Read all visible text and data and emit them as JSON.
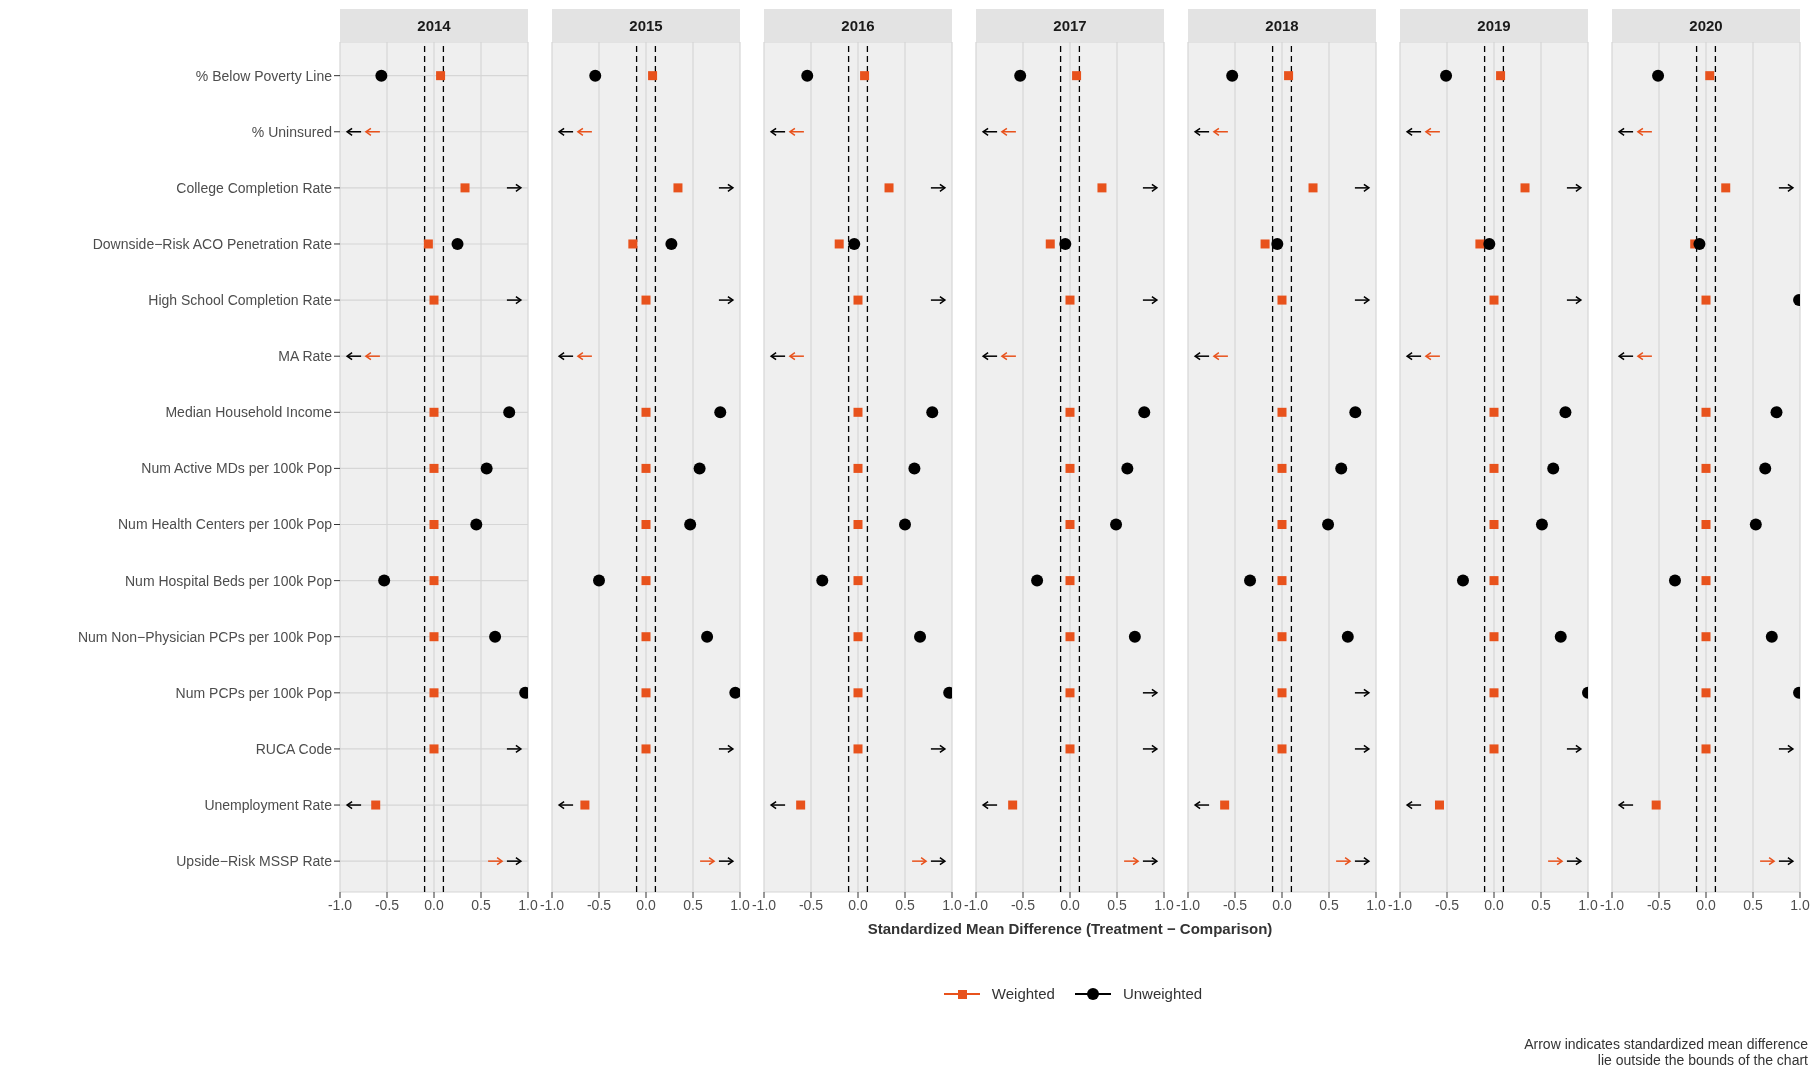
{
  "chart_data": [
    {
      "type": "scatter",
      "orientation": "horizontal",
      "title": "2014",
      "legend": "bottom",
      "grid": true,
      "categories": [
        "% Below Poverty Line",
        "% Uninsured",
        "College Completion Rate",
        "Downside−Risk ACO Penetration Rate",
        "High School Completion Rate",
        "MA Rate",
        "Median Household Income",
        "Num Active MDs per 100k Pop",
        "Num Health Centers per 100k Pop",
        "Num Hospital Beds per 100k Pop",
        "Num Non−Physician PCPs per 100k Pop",
        "Num PCPs per 100k Pop",
        "RUCA Code",
        "Unemployment Rate",
        "Upside−Risk MSSP Rate"
      ],
      "series": [
        {
          "name": "Weighted",
          "color": "#e8521c",
          "marker": "square",
          "values": [
            0.07,
            null,
            0.33,
            -0.06,
            0,
            null,
            0,
            0,
            0,
            0,
            0,
            0,
            0,
            -0.62,
            null
          ]
        },
        {
          "name": "Unweighted",
          "color": "#000000",
          "marker": "circle",
          "values": [
            -0.56,
            null,
            null,
            0.25,
            null,
            null,
            0.8,
            0.56,
            0.45,
            -0.53,
            0.65,
            0.97,
            null,
            null,
            null
          ]
        }
      ],
      "xlim": [
        -1,
        1
      ],
      "xticks": [
        {
          "value": -1,
          "label": "-1.0"
        },
        {
          "value": -0.5,
          "label": "-0.5"
        },
        {
          "value": 0,
          "label": "0.0"
        },
        {
          "value": 0.5,
          "label": "0.5"
        },
        {
          "value": 1,
          "label": "1.0"
        }
      ],
      "ref_lines": [
        {
          "axis": "x",
          "value": -0.1,
          "line_style": "dashed",
          "color": "#000000"
        },
        {
          "axis": "x",
          "value": 0.1,
          "line_style": "dashed",
          "color": "#000000"
        }
      ],
      "annotations": [
        "Arrow indicates standardized mean difference\nlie outside the bounds of the chart"
      ]
    },
    {
      "type": "scatter",
      "orientation": "horizontal",
      "title": "2015",
      "grid": true,
      "tick_labels": "x",
      "series": [
        {
          "color": "#e8521c",
          "marker": "square",
          "values": [
            0.07,
            null,
            0.34,
            -0.14,
            0,
            null,
            0,
            0,
            0,
            0,
            0,
            0,
            0,
            -0.65,
            null
          ]
        },
        {
          "color": "#000000",
          "marker": "circle",
          "values": [
            -0.54,
            null,
            null,
            0.27,
            null,
            null,
            0.79,
            0.57,
            0.47,
            -0.5,
            0.65,
            0.95,
            null,
            null,
            null
          ]
        }
      ],
      "xlim": [
        -1,
        1
      ],
      "xticks": [
        {
          "value": -1,
          "label": "-1.0"
        },
        {
          "value": -0.5,
          "label": "-0.5"
        },
        {
          "value": 0,
          "label": "0.0"
        },
        {
          "value": 0.5,
          "label": "0.5"
        },
        {
          "value": 1,
          "label": "1.0"
        }
      ],
      "ref_lines": [
        {
          "axis": "x",
          "value": -0.1,
          "line_style": "dashed",
          "color": "#000000"
        },
        {
          "axis": "x",
          "value": 0.1,
          "line_style": "dashed",
          "color": "#000000"
        }
      ]
    },
    {
      "type": "scatter",
      "orientation": "horizontal",
      "title": "2016",
      "grid": true,
      "tick_labels": "x",
      "series": [
        {
          "color": "#e8521c",
          "marker": "square",
          "values": [
            0.07,
            null,
            0.33,
            -0.2,
            0,
            null,
            0,
            0,
            0,
            0,
            0,
            0,
            0,
            -0.61,
            null
          ]
        },
        {
          "color": "#000000",
          "marker": "circle",
          "values": [
            -0.54,
            null,
            null,
            -0.04,
            null,
            null,
            0.79,
            0.6,
            0.5,
            -0.38,
            0.66,
            0.97,
            null,
            null,
            null
          ]
        }
      ],
      "xlim": [
        -1,
        1
      ],
      "xticks": [
        {
          "value": -1,
          "label": "-1.0"
        },
        {
          "value": -0.5,
          "label": "-0.5"
        },
        {
          "value": 0,
          "label": "0.0"
        },
        {
          "value": 0.5,
          "label": "0.5"
        },
        {
          "value": 1,
          "label": "1.0"
        }
      ],
      "ref_lines": [
        {
          "axis": "x",
          "value": -0.1,
          "line_style": "dashed",
          "color": "#000000"
        },
        {
          "axis": "x",
          "value": 0.1,
          "line_style": "dashed",
          "color": "#000000"
        }
      ]
    },
    {
      "type": "scatter",
      "orientation": "horizontal",
      "title": "2017",
      "xlabel": "Standardized Mean Difference (Treatment − Comparison)",
      "grid": true,
      "tick_labels": "x",
      "series": [
        {
          "color": "#e8521c",
          "marker": "square",
          "values": [
            0.07,
            null,
            0.34,
            -0.21,
            0,
            null,
            0,
            0,
            0,
            0,
            0,
            0,
            0,
            -0.61,
            null
          ]
        },
        {
          "color": "#000000",
          "marker": "circle",
          "values": [
            -0.53,
            null,
            null,
            -0.05,
            null,
            null,
            0.79,
            0.61,
            0.49,
            -0.35,
            0.69,
            null,
            null,
            null,
            null
          ]
        }
      ],
      "xlim": [
        -1,
        1
      ],
      "xticks": [
        {
          "value": -1,
          "label": "-1.0"
        },
        {
          "value": -0.5,
          "label": "-0.5"
        },
        {
          "value": 0,
          "label": "0.0"
        },
        {
          "value": 0.5,
          "label": "0.5"
        },
        {
          "value": 1,
          "label": "1.0"
        }
      ],
      "ref_lines": [
        {
          "axis": "x",
          "value": -0.1,
          "line_style": "dashed",
          "color": "#000000"
        },
        {
          "axis": "x",
          "value": 0.1,
          "line_style": "dashed",
          "color": "#000000"
        }
      ]
    },
    {
      "type": "scatter",
      "orientation": "horizontal",
      "title": "2018",
      "grid": true,
      "tick_labels": "x",
      "series": [
        {
          "color": "#e8521c",
          "marker": "square",
          "values": [
            0.07,
            null,
            0.33,
            -0.18,
            0,
            null,
            0,
            0,
            0,
            0,
            0,
            0,
            0,
            -0.61,
            null
          ]
        },
        {
          "color": "#000000",
          "marker": "circle",
          "values": [
            -0.53,
            null,
            null,
            -0.05,
            null,
            null,
            0.78,
            0.63,
            0.49,
            -0.34,
            0.7,
            null,
            null,
            null,
            null
          ]
        }
      ],
      "xlim": [
        -1,
        1
      ],
      "xticks": [
        {
          "value": -1,
          "label": "-1.0"
        },
        {
          "value": -0.5,
          "label": "-0.5"
        },
        {
          "value": 0,
          "label": "0.0"
        },
        {
          "value": 0.5,
          "label": "0.5"
        },
        {
          "value": 1,
          "label": "1.0"
        }
      ],
      "ref_lines": [
        {
          "axis": "x",
          "value": -0.1,
          "line_style": "dashed",
          "color": "#000000"
        },
        {
          "axis": "x",
          "value": 0.1,
          "line_style": "dashed",
          "color": "#000000"
        }
      ]
    },
    {
      "type": "scatter",
      "orientation": "horizontal",
      "title": "2019",
      "grid": true,
      "tick_labels": "x",
      "series": [
        {
          "color": "#e8521c",
          "marker": "square",
          "values": [
            0.07,
            null,
            0.33,
            -0.15,
            0,
            null,
            0,
            0,
            0,
            0,
            0,
            0,
            0,
            -0.58,
            null
          ]
        },
        {
          "color": "#000000",
          "marker": "circle",
          "values": [
            -0.51,
            null,
            null,
            -0.05,
            null,
            null,
            0.76,
            0.63,
            0.51,
            -0.33,
            0.71,
            1.0,
            null,
            null,
            null
          ]
        }
      ],
      "xlim": [
        -1,
        1
      ],
      "xticks": [
        {
          "value": -1,
          "label": "-1.0"
        },
        {
          "value": -0.5,
          "label": "-0.5"
        },
        {
          "value": 0,
          "label": "0.0"
        },
        {
          "value": 0.5,
          "label": "0.5"
        },
        {
          "value": 1,
          "label": "1.0"
        }
      ],
      "ref_lines": [
        {
          "axis": "x",
          "value": -0.1,
          "line_style": "dashed",
          "color": "#000000"
        },
        {
          "axis": "x",
          "value": 0.1,
          "line_style": "dashed",
          "color": "#000000"
        }
      ]
    },
    {
      "type": "scatter",
      "orientation": "horizontal",
      "title": "2020",
      "grid": true,
      "tick_labels": "x",
      "series": [
        {
          "color": "#e8521c",
          "marker": "square",
          "values": [
            0.04,
            null,
            0.21,
            -0.12,
            0,
            null,
            0,
            0,
            0,
            0,
            0,
            0,
            0,
            -0.53,
            null
          ]
        },
        {
          "color": "#000000",
          "marker": "circle",
          "values": [
            -0.51,
            null,
            null,
            -0.07,
            0.99,
            null,
            0.75,
            0.63,
            0.53,
            -0.33,
            0.7,
            0.99,
            null,
            null,
            null
          ]
        }
      ],
      "xlim": [
        -1,
        1
      ],
      "xticks": [
        {
          "value": -1,
          "label": "-1.0"
        },
        {
          "value": -0.5,
          "label": "-0.5"
        },
        {
          "value": 0,
          "label": "0.0"
        },
        {
          "value": 0.5,
          "label": "0.5"
        },
        {
          "value": 1,
          "label": "1.0"
        }
      ],
      "ref_lines": [
        {
          "axis": "x",
          "value": -0.1,
          "line_style": "dashed",
          "color": "#000000"
        },
        {
          "axis": "x",
          "value": 0.1,
          "line_style": "dashed",
          "color": "#000000"
        }
      ]
    }
  ]
}
